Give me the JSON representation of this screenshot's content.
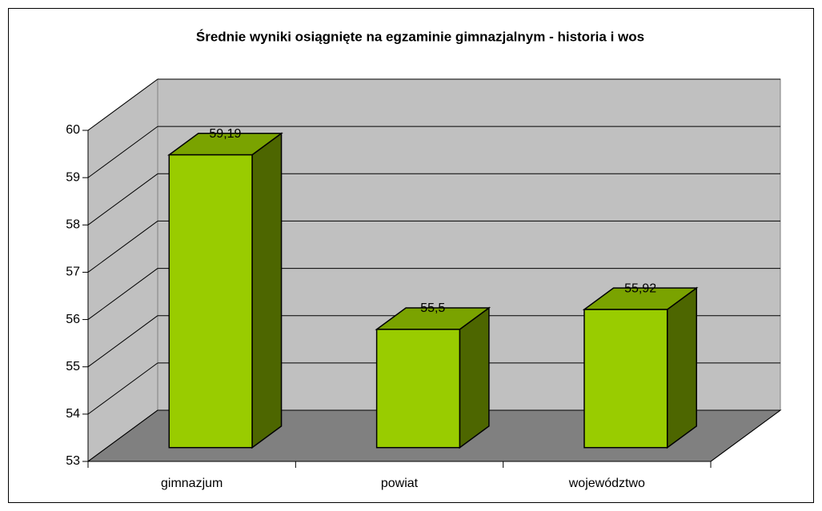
{
  "chart_data": {
    "type": "bar3d",
    "title": "Średnie wyniki osiągnięte na egzaminie gimnazjalnym - historia i wos",
    "categories": [
      "gimnazjum",
      "powiat",
      "województwo"
    ],
    "values": [
      59.19,
      55.5,
      55.92
    ],
    "value_labels": [
      "59,19",
      "55,5",
      "55,92"
    ],
    "color": "#99cc00",
    "ylim": [
      53,
      60
    ],
    "yticks": [
      53,
      54,
      55,
      56,
      57,
      58,
      59,
      60
    ],
    "grid": true
  }
}
